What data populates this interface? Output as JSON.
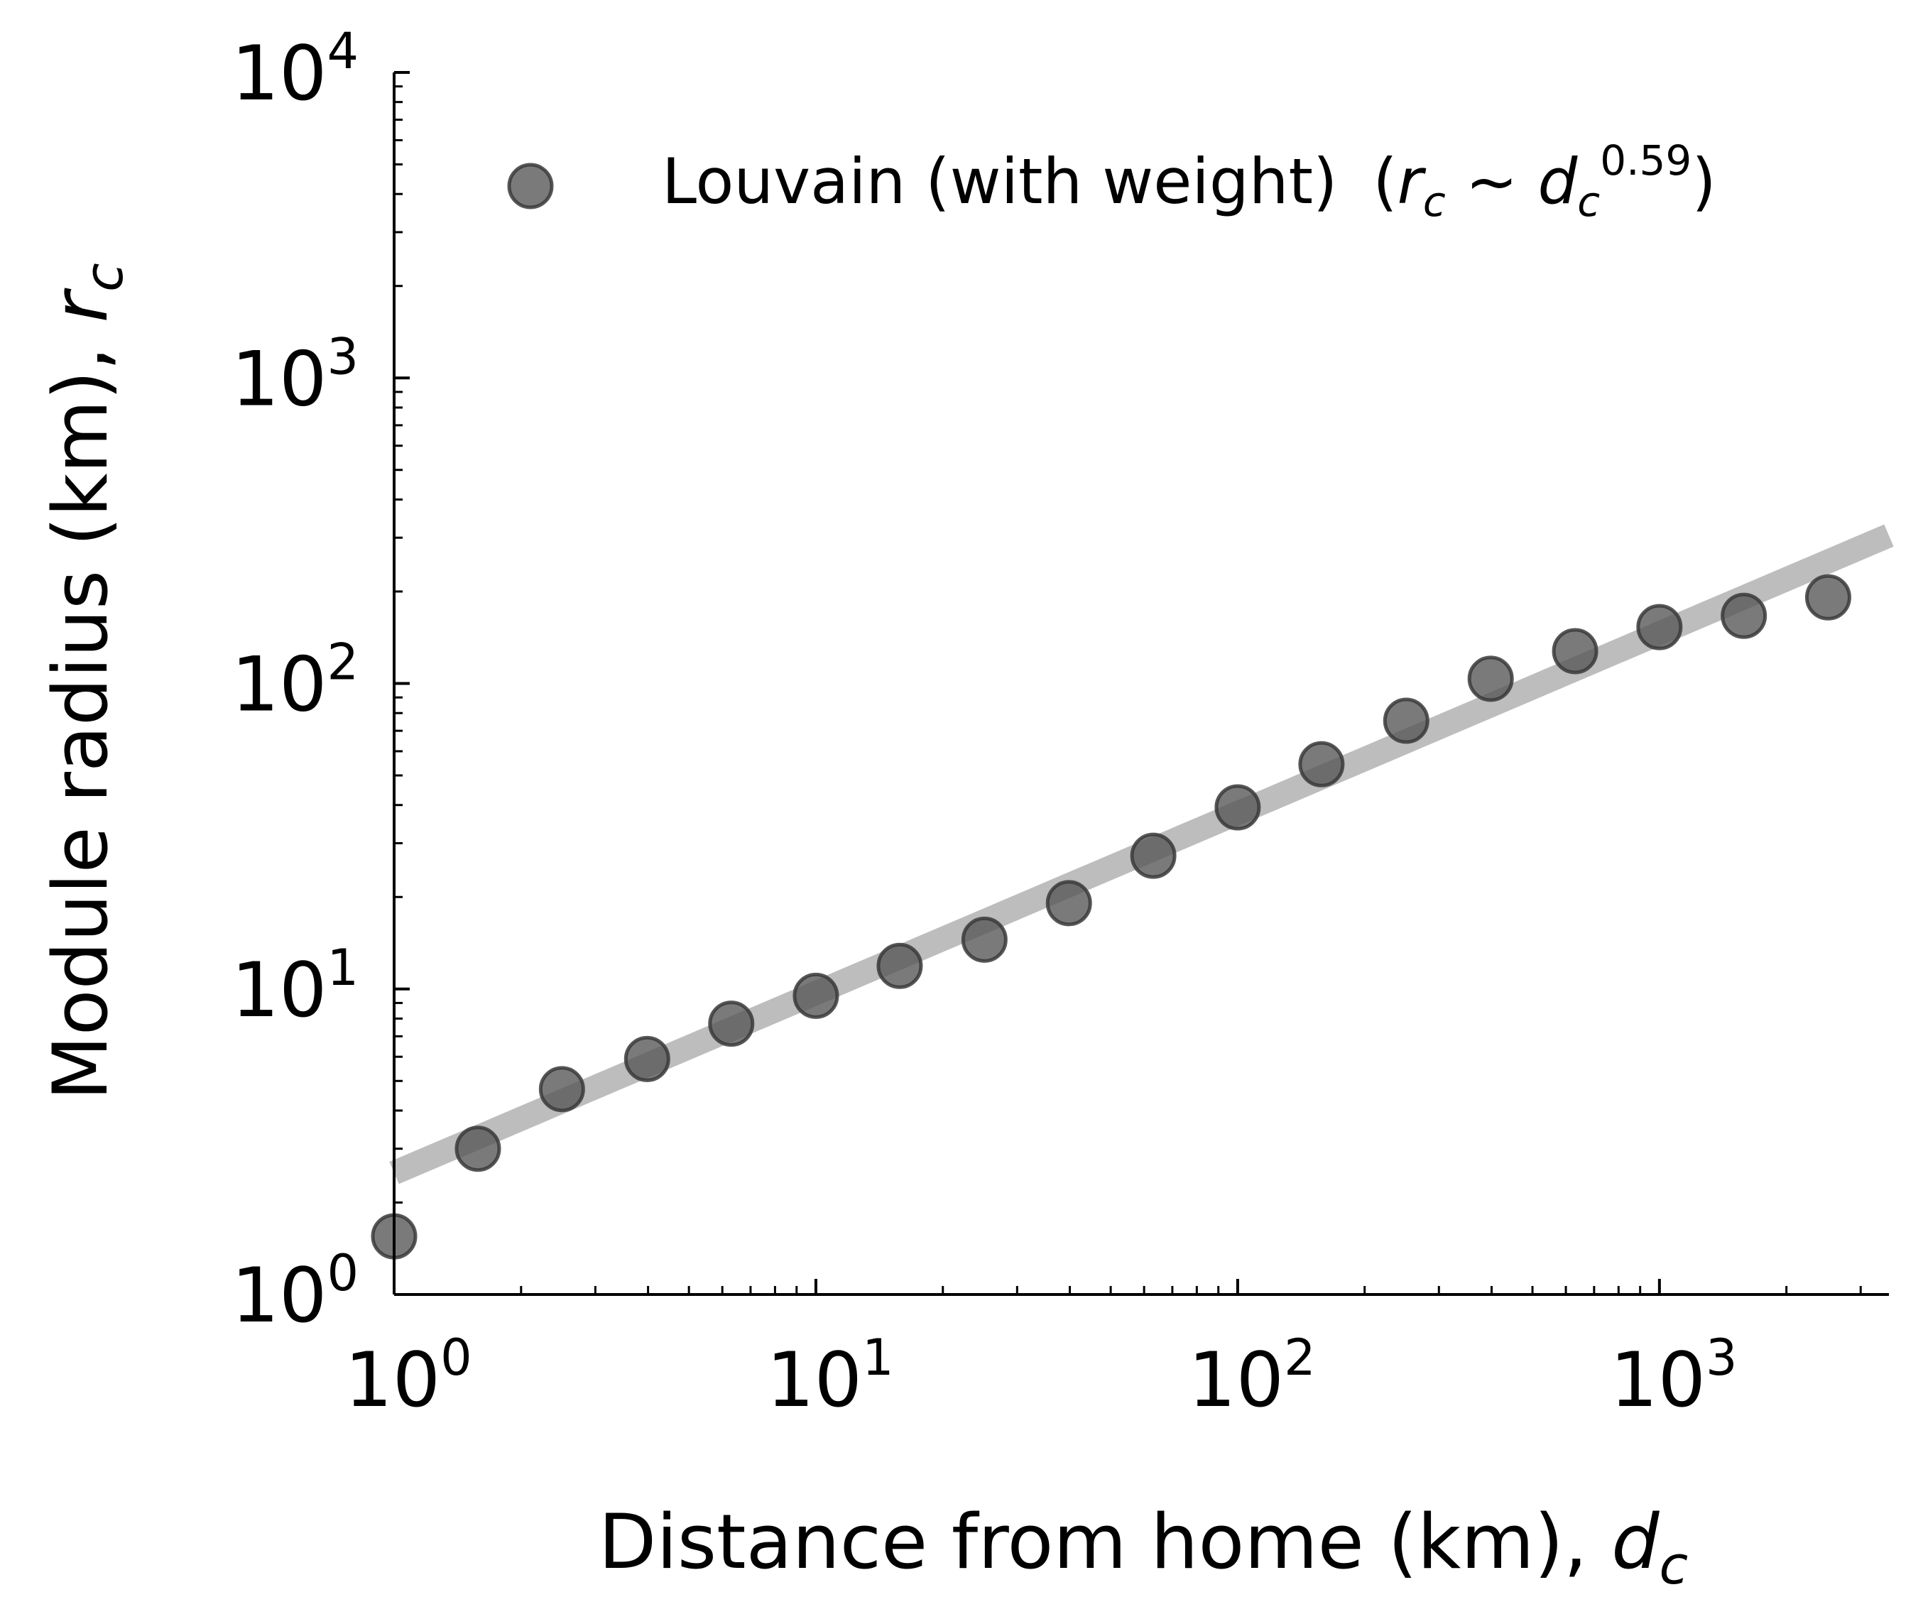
{
  "chart_data": {
    "type": "scatter",
    "x_scale": "log",
    "y_scale": "log",
    "xlim": [
      1,
      3500
    ],
    "ylim": [
      1,
      10000
    ],
    "xlabel": {
      "main": "Distance from home (km), ",
      "var": "d",
      "sub": "c"
    },
    "ylabel": {
      "main": "Module radius (km), ",
      "var": "r",
      "sub": "c"
    },
    "x_ticks": [
      {
        "base": "10",
        "exp": "0",
        "value": 1
      },
      {
        "base": "10",
        "exp": "1",
        "value": 10
      },
      {
        "base": "10",
        "exp": "2",
        "value": 100
      },
      {
        "base": "10",
        "exp": "3",
        "value": 1000
      }
    ],
    "y_ticks": [
      {
        "base": "10",
        "exp": "0",
        "value": 1
      },
      {
        "base": "10",
        "exp": "1",
        "value": 10
      },
      {
        "base": "10",
        "exp": "2",
        "value": 100
      },
      {
        "base": "10",
        "exp": "3",
        "value": 1000
      },
      {
        "base": "10",
        "exp": "4",
        "value": 10000
      }
    ],
    "legend": {
      "placement": "top-right",
      "series_label": "Louvain (with weight)",
      "fit_open": "(",
      "fit_r": "r",
      "fit_r_sub": "c",
      "fit_tilde": " ~ ",
      "fit_d": "d",
      "fit_d_sub": "c",
      "fit_exp": "0.59",
      "fit_close": ")"
    },
    "series": [
      {
        "name": "Louvain (with weight)",
        "color": "#555555",
        "points": [
          {
            "x": 1.0,
            "y": 1.55
          },
          {
            "x": 1.58,
            "y": 3.0
          },
          {
            "x": 2.5,
            "y": 4.7
          },
          {
            "x": 3.98,
            "y": 5.9
          },
          {
            "x": 6.3,
            "y": 7.7
          },
          {
            "x": 10.0,
            "y": 9.5
          },
          {
            "x": 15.8,
            "y": 11.9
          },
          {
            "x": 25.1,
            "y": 14.5
          },
          {
            "x": 39.8,
            "y": 19.1
          },
          {
            "x": 63.1,
            "y": 27.3
          },
          {
            "x": 100,
            "y": 39.3
          },
          {
            "x": 158,
            "y": 54.4
          },
          {
            "x": 251,
            "y": 75.5
          },
          {
            "x": 398,
            "y": 103.6
          },
          {
            "x": 631,
            "y": 127.6
          },
          {
            "x": 1000,
            "y": 152.9
          },
          {
            "x": 1585,
            "y": 166.5
          },
          {
            "x": 2512,
            "y": 191.3
          }
        ]
      }
    ],
    "fit_line": {
      "color": "#bdbdbd",
      "exponent": 0.59,
      "x": [
        1.0,
        3500
      ],
      "y": [
        2.5,
        305
      ]
    }
  }
}
